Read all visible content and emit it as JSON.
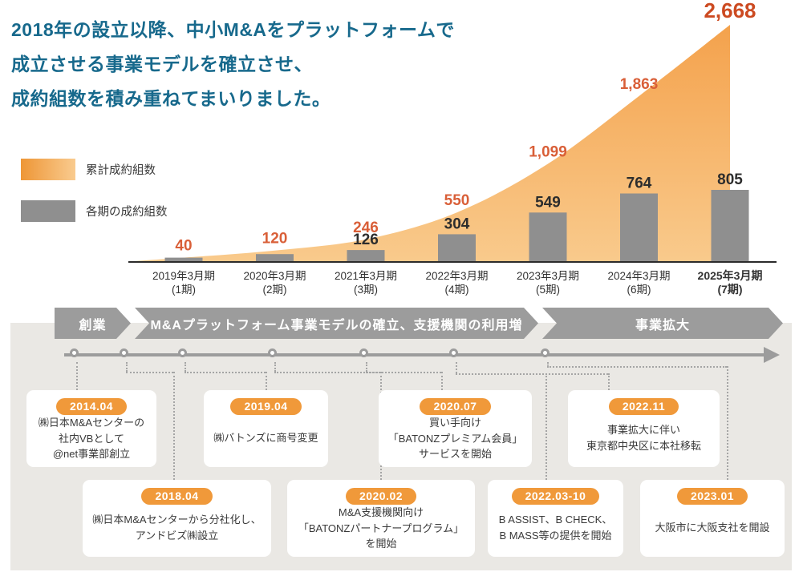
{
  "title": {
    "lines": [
      "2018年の設立以降、中小M&Aをプラットフォームで",
      "成立させる事業モデルを確立させ、",
      "成約組数を積み重ねてまいりました。"
    ]
  },
  "legend": {
    "cumulative_label": "累計成約組数",
    "period_label": "各期の成約組数"
  },
  "chart_data": {
    "type": "combo",
    "title": "",
    "categories": [
      {
        "line1": "2019年3月期",
        "line2": "(1期)",
        "bold": false
      },
      {
        "line1": "2020年3月期",
        "line2": "(2期)",
        "bold": false
      },
      {
        "line1": "2021年3月期",
        "line2": "(3期)",
        "bold": false
      },
      {
        "line1": "2022年3月期",
        "line2": "(4期)",
        "bold": false
      },
      {
        "line1": "2023年3月期",
        "line2": "(5期)",
        "bold": false
      },
      {
        "line1": "2024年3月期",
        "line2": "(6期)",
        "bold": false
      },
      {
        "line1": "2025年3月期",
        "line2": "(7期)",
        "bold": true
      }
    ],
    "series": [
      {
        "name": "累計成約組数",
        "type": "area",
        "values": [
          40,
          120,
          246,
          550,
          1099,
          1863,
          2668
        ],
        "labels": [
          "40",
          "120",
          "246",
          "550",
          "1,099",
          "1,863",
          "2,668"
        ]
      },
      {
        "name": "各期の成約組数",
        "type": "bar",
        "values": [
          40,
          80,
          126,
          304,
          549,
          764,
          805
        ],
        "labels": [
          "",
          "",
          "126",
          "304",
          "549",
          "764",
          "805"
        ]
      }
    ],
    "ylim": [
      0,
      2668
    ],
    "grid": false,
    "legend_position": "left"
  },
  "timeline": {
    "bands": [
      "創業",
      "M&Aプラットフォーム事業モデルの確立、支援機関の利用増",
      "事業拡大"
    ],
    "events": [
      {
        "date": "2014.04",
        "lines": [
          "㈱日本M&Aセンターの",
          "社内VBとして",
          "@net事業部創立"
        ]
      },
      {
        "date": "2018.04",
        "lines": [
          "㈱日本M&Aセンターから分社化し、",
          "アンドビズ㈱設立"
        ]
      },
      {
        "date": "2019.04",
        "lines": [
          "㈱バトンズに商号変更"
        ]
      },
      {
        "date": "2020.02",
        "lines": [
          "M&A支援機関向け",
          "「BATONZパートナープログラム」",
          "を開始"
        ]
      },
      {
        "date": "2020.07",
        "lines": [
          "買い手向け",
          "「BATONZプレミアム会員」",
          "サービスを開始"
        ]
      },
      {
        "date": "2022.03-10",
        "lines": [
          "B ASSIST、B CHECK、",
          "B MASS等の提供を開始"
        ]
      },
      {
        "date": "2022.11",
        "lines": [
          "事業拡大に伴い",
          "東京都中央区に本社移転"
        ]
      },
      {
        "date": "2023.01",
        "lines": [
          "大阪市に大阪支社を開設"
        ]
      }
    ]
  },
  "colors": {
    "title_teal": "#17698c",
    "area_orange_top": "#f4a14b",
    "area_orange_bottom": "#f9ca8c",
    "cumulative_label_orange": "#d95f38",
    "final_value_orange": "#cc4a21",
    "bar_label_dark": "#2d2d2d",
    "bar_gray": "#8f8f8f",
    "band_gray": "#9c9c9c",
    "panel_bg": "#eae8e4",
    "pill_orange": "#f0993a"
  }
}
